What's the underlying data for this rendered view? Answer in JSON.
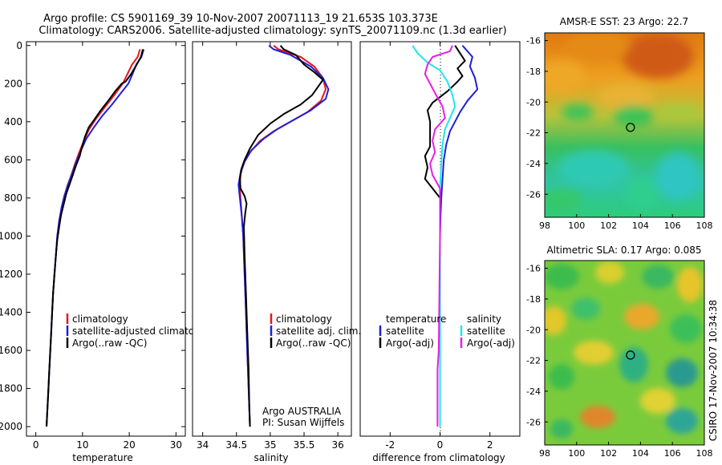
{
  "title": {
    "line1": "Argo profile: CS 5901169_39 10-Nov-2007 20071113_19 21.653S 103.373E",
    "line2": "Climatology: CARS2006. Satellite-adjusted climatology: synTS_20071109.nc (1.3d earlier)"
  },
  "side_label": "CSIRO 17-Nov-2007 10:34:38",
  "colors": {
    "red": "#e8141e",
    "blue": "#1f1fd6",
    "black": "#000000",
    "cyan": "#1ee6ee",
    "magenta": "#e61ee6"
  },
  "chart_data": [
    {
      "id": "temperature",
      "type": "line",
      "xlabel": "temperature",
      "xlim": [
        -2,
        32
      ],
      "ylim": [
        2050,
        -20
      ],
      "xticks": [
        "0",
        "10",
        "20",
        "30"
      ],
      "yticks": [
        "0",
        "200",
        "400",
        "600",
        "800",
        "1000",
        "1200",
        "1400",
        "1600",
        "1800",
        "2000"
      ],
      "series": [
        {
          "name": "climatology",
          "color": "red",
          "pts": [
            [
              22.3,
              20
            ],
            [
              21.8,
              60
            ],
            [
              20.6,
              100
            ],
            [
              19.6,
              150
            ],
            [
              18.6,
              200
            ],
            [
              16.8,
              260
            ],
            [
              14.9,
              320
            ],
            [
              13.0,
              380
            ],
            [
              11.4,
              440
            ],
            [
              10.3,
              500
            ],
            [
              9.3,
              560
            ],
            [
              8.4,
              620
            ],
            [
              7.6,
              680
            ],
            [
              6.7,
              740
            ],
            [
              6.0,
              800
            ],
            [
              5.5,
              860
            ],
            [
              5.0,
              920
            ],
            [
              4.6,
              1000
            ],
            [
              4.3,
              1100
            ],
            [
              4.0,
              1200
            ],
            [
              3.7,
              1300
            ],
            [
              3.5,
              1400
            ],
            [
              3.3,
              1500
            ],
            [
              3.1,
              1600
            ],
            [
              2.9,
              1700
            ],
            [
              2.7,
              1800
            ],
            [
              2.5,
              1900
            ],
            [
              2.3,
              2000
            ]
          ]
        },
        {
          "name": "satellite-adjusted climatology",
          "color": "blue",
          "pts": [
            [
              23.1,
              20
            ],
            [
              22.6,
              60
            ],
            [
              21.5,
              100
            ],
            [
              20.7,
              150
            ],
            [
              19.8,
              200
            ],
            [
              18.2,
              250
            ],
            [
              16.3,
              310
            ],
            [
              14.2,
              370
            ],
            [
              12.4,
              430
            ],
            [
              10.8,
              490
            ],
            [
              9.7,
              550
            ],
            [
              8.7,
              610
            ],
            [
              7.8,
              670
            ],
            [
              6.9,
              730
            ],
            [
              6.1,
              790
            ],
            [
              5.5,
              850
            ],
            [
              5.0,
              920
            ],
            [
              4.6,
              1000
            ],
            [
              4.3,
              1100
            ],
            [
              4.0,
              1200
            ],
            [
              3.7,
              1300
            ],
            [
              3.5,
              1400
            ],
            [
              3.3,
              1500
            ],
            [
              3.1,
              1600
            ],
            [
              2.9,
              1700
            ],
            [
              2.7,
              1800
            ],
            [
              2.5,
              1900
            ],
            [
              2.3,
              2000
            ]
          ]
        },
        {
          "name": "Argo(..raw -QC)",
          "color": "black",
          "pts": [
            [
              22.9,
              20
            ],
            [
              22.5,
              60
            ],
            [
              21.6,
              100
            ],
            [
              20.4,
              150
            ],
            [
              19.2,
              190
            ],
            [
              18.4,
              200
            ],
            [
              17.0,
              240
            ],
            [
              15.5,
              290
            ],
            [
              13.9,
              340
            ],
            [
              12.5,
              390
            ],
            [
              11.3,
              430
            ],
            [
              10.5,
              480
            ],
            [
              9.9,
              530
            ],
            [
              9.4,
              580
            ],
            [
              8.6,
              630
            ],
            [
              7.9,
              680
            ],
            [
              7.2,
              730
            ],
            [
              6.5,
              780
            ],
            [
              6.0,
              830
            ],
            [
              5.4,
              890
            ],
            [
              5.0,
              950
            ],
            [
              4.6,
              1020
            ],
            [
              4.3,
              1100
            ],
            [
              4.0,
              1200
            ],
            [
              3.7,
              1300
            ],
            [
              3.5,
              1400
            ],
            [
              3.3,
              1500
            ],
            [
              3.1,
              1600
            ],
            [
              2.9,
              1700
            ],
            [
              2.7,
              1800
            ],
            [
              2.5,
              1900
            ],
            [
              2.3,
              2000
            ]
          ]
        }
      ],
      "legend": [
        "climatology",
        "satellite-adjusted climatology",
        "Argo(..raw -QC)"
      ]
    },
    {
      "id": "salinity",
      "type": "line",
      "xlabel": "salinity",
      "xlim": [
        33.85,
        36.2
      ],
      "ylim": [
        2050,
        -20
      ],
      "xticks": [
        "34",
        "34.5",
        "35",
        "35.5",
        "36"
      ],
      "yticks": [],
      "series": [
        {
          "name": "climatology",
          "color": "red",
          "pts": [
            [
              35.05,
              0
            ],
            [
              35.12,
              20
            ],
            [
              35.45,
              60
            ],
            [
              35.65,
              110
            ],
            [
              35.78,
              170
            ],
            [
              35.82,
              230
            ],
            [
              35.75,
              290
            ],
            [
              35.55,
              350
            ],
            [
              35.3,
              400
            ],
            [
              35.05,
              450
            ],
            [
              34.85,
              500
            ],
            [
              34.7,
              560
            ],
            [
              34.6,
              620
            ],
            [
              34.56,
              680
            ],
            [
              34.55,
              740
            ],
            [
              34.56,
              800
            ],
            [
              34.58,
              900
            ],
            [
              34.6,
              1000
            ],
            [
              34.62,
              1200
            ],
            [
              34.64,
              1400
            ],
            [
              34.66,
              1600
            ],
            [
              34.68,
              1800
            ],
            [
              34.7,
              2000
            ]
          ]
        },
        {
          "name": "satellite adj. clim.",
          "color": "blue",
          "pts": [
            [
              34.98,
              0
            ],
            [
              35.05,
              20
            ],
            [
              35.3,
              50
            ],
            [
              35.6,
              110
            ],
            [
              35.78,
              170
            ],
            [
              35.86,
              230
            ],
            [
              35.82,
              280
            ],
            [
              35.6,
              340
            ],
            [
              35.35,
              390
            ],
            [
              35.1,
              440
            ],
            [
              34.9,
              490
            ],
            [
              34.72,
              550
            ],
            [
              34.62,
              610
            ],
            [
              34.56,
              670
            ],
            [
              34.53,
              730
            ],
            [
              34.55,
              800
            ],
            [
              34.58,
              900
            ],
            [
              34.6,
              1000
            ],
            [
              34.62,
              1200
            ],
            [
              34.64,
              1400
            ],
            [
              34.66,
              1600
            ],
            [
              34.68,
              1800
            ],
            [
              34.7,
              2000
            ]
          ]
        },
        {
          "name": "Argo(..raw -QC)",
          "color": "black",
          "pts": [
            [
              35.15,
              0
            ],
            [
              35.2,
              20
            ],
            [
              35.38,
              50
            ],
            [
              35.5,
              100
            ],
            [
              35.65,
              140
            ],
            [
              35.78,
              180
            ],
            [
              35.74,
              200
            ],
            [
              35.7,
              220
            ],
            [
              35.62,
              260
            ],
            [
              35.45,
              310
            ],
            [
              35.2,
              360
            ],
            [
              35.0,
              410
            ],
            [
              34.82,
              470
            ],
            [
              34.7,
              540
            ],
            [
              34.62,
              600
            ],
            [
              34.57,
              650
            ],
            [
              34.55,
              700
            ],
            [
              34.56,
              750
            ],
            [
              34.62,
              790
            ],
            [
              34.65,
              830
            ],
            [
              34.63,
              880
            ],
            [
              34.61,
              950
            ],
            [
              34.62,
              1100
            ],
            [
              34.64,
              1300
            ],
            [
              34.66,
              1500
            ],
            [
              34.68,
              1700
            ],
            [
              34.69,
              1900
            ],
            [
              34.7,
              2000
            ]
          ]
        }
      ],
      "legend": [
        "climatology",
        "satellite adj. clim.",
        "Argo(..raw -QC)"
      ],
      "note": [
        "Argo AUSTRALIA",
        "PI: Susan Wijffels"
      ]
    },
    {
      "id": "difference",
      "type": "line",
      "xlabel": "difference from climatology",
      "xlim": [
        -3.2,
        3.2
      ],
      "ylim": [
        2050,
        -20
      ],
      "xticks": [
        "-2",
        "0",
        "2"
      ],
      "yticks": [],
      "series": [
        {
          "name": "temperature satellite",
          "color": "blue",
          "pts": [
            [
              0.9,
              0
            ],
            [
              1.3,
              60
            ],
            [
              1.2,
              110
            ],
            [
              1.4,
              170
            ],
            [
              1.5,
              230
            ],
            [
              1.1,
              290
            ],
            [
              0.8,
              350
            ],
            [
              0.6,
              400
            ],
            [
              0.4,
              450
            ],
            [
              0.25,
              520
            ],
            [
              0.15,
              600
            ],
            [
              0.1,
              700
            ],
            [
              0.05,
              800
            ],
            [
              0.02,
              900
            ],
            [
              0.0,
              1000
            ],
            [
              0.0,
              2000
            ]
          ]
        },
        {
          "name": "temperature Argo(-adj)",
          "color": "black",
          "pts": [
            [
              0.6,
              0
            ],
            [
              0.8,
              40
            ],
            [
              1.0,
              80
            ],
            [
              0.7,
              120
            ],
            [
              0.9,
              160
            ],
            [
              0.7,
              190
            ],
            [
              0.3,
              240
            ],
            [
              -0.3,
              300
            ],
            [
              -0.5,
              340
            ],
            [
              -0.4,
              400
            ],
            [
              -0.4,
              450
            ],
            [
              -0.4,
              530
            ],
            [
              -0.6,
              580
            ],
            [
              -0.5,
              640
            ],
            [
              -0.6,
              700
            ],
            [
              -0.3,
              750
            ],
            [
              0.0,
              800
            ],
            [
              0.0,
              900
            ],
            [
              0.0,
              2000
            ]
          ]
        },
        {
          "name": "salinity satellite",
          "color": "cyan",
          "pts": [
            [
              -1.1,
              0
            ],
            [
              -0.9,
              40
            ],
            [
              -0.5,
              90
            ],
            [
              0.0,
              130
            ],
            [
              0.3,
              190
            ],
            [
              0.5,
              260
            ],
            [
              0.6,
              320
            ],
            [
              0.4,
              380
            ],
            [
              0.2,
              440
            ],
            [
              0.1,
              520
            ],
            [
              0.05,
              620
            ],
            [
              0.0,
              750
            ],
            [
              0.0,
              1000
            ],
            [
              0.0,
              2000
            ]
          ]
        },
        {
          "name": "salinity Argo(-adj)",
          "color": "magenta",
          "pts": [
            [
              0.5,
              0
            ],
            [
              0.4,
              30
            ],
            [
              -0.3,
              60
            ],
            [
              -0.5,
              100
            ],
            [
              -0.6,
              150
            ],
            [
              -0.4,
              200
            ],
            [
              -0.2,
              250
            ],
            [
              0.1,
              320
            ],
            [
              0.2,
              380
            ],
            [
              -0.2,
              440
            ],
            [
              -0.3,
              500
            ],
            [
              -0.2,
              560
            ],
            [
              -0.4,
              620
            ],
            [
              -0.3,
              680
            ],
            [
              0.0,
              750
            ],
            [
              0.0,
              1000
            ],
            [
              -0.05,
              1600
            ],
            [
              -0.1,
              1700
            ],
            [
              -0.1,
              2000
            ]
          ]
        }
      ],
      "legend_temperature": {
        "heading": "temperature",
        "items": [
          "satellite",
          "Argo(-adj)"
        ]
      },
      "legend_salinity": {
        "heading": "salinity",
        "items": [
          "satellite",
          "Argo(-adj)"
        ]
      }
    },
    {
      "id": "sst_map",
      "type": "heatmap",
      "title": "AMSR-E SST: 23  Argo: 22.7",
      "xlim": [
        98,
        108
      ],
      "ylim": [
        -27.5,
        -15.5
      ],
      "xticks": [
        "98",
        "100",
        "102",
        "104",
        "106",
        "108"
      ],
      "yticks": [
        "-16",
        "-18",
        "-20",
        "-22",
        "-24",
        "-26"
      ],
      "marker": [
        103.373,
        -21.653
      ]
    },
    {
      "id": "sla_map",
      "type": "heatmap",
      "title": "Altimetric SLA: 0.17  Argo: 0.085",
      "xlim": [
        98,
        108
      ],
      "ylim": [
        -27.5,
        -15.5
      ],
      "xticks": [
        "98",
        "100",
        "102",
        "104",
        "106",
        "108"
      ],
      "yticks": [
        "-16",
        "-18",
        "-20",
        "-22",
        "-24",
        "-26"
      ],
      "marker": [
        103.373,
        -21.653
      ]
    }
  ]
}
